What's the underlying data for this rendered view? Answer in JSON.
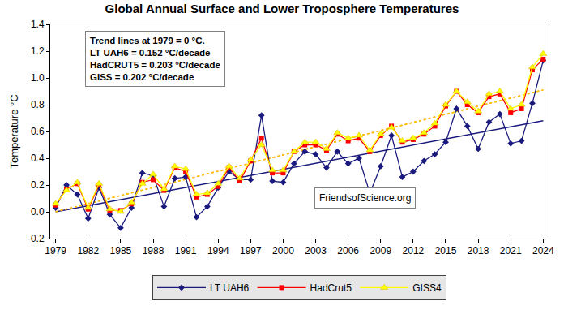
{
  "chart_data": {
    "type": "line",
    "title": "Global Annual Surface and Lower Troposphere Temperatures",
    "y_label": "Temperature °C",
    "annotations": [
      "Trend lines at 1979 = 0 °C.",
      "LT UAH6 = 0.152 °C/decade",
      "HadCRUT5 = 0.203 °C/decade",
      "GISS = 0.202 °C/decade"
    ],
    "watermark": "FriendsofScience.org",
    "x": [
      1979,
      1980,
      1981,
      1982,
      1983,
      1984,
      1985,
      1986,
      1987,
      1988,
      1989,
      1990,
      1991,
      1992,
      1993,
      1994,
      1995,
      1996,
      1997,
      1998,
      1999,
      2000,
      2001,
      2002,
      2003,
      2004,
      2005,
      2006,
      2007,
      2008,
      2009,
      2010,
      2011,
      2012,
      2013,
      2014,
      2015,
      2016,
      2017,
      2018,
      2019,
      2020,
      2021,
      2022,
      2023,
      2024
    ],
    "series": [
      {
        "name": "LT UAH6",
        "color": "#1a1a7e",
        "marker": "diamond",
        "line_style": "solid",
        "values": [
          0.03,
          0.2,
          0.13,
          -0.05,
          0.18,
          -0.02,
          -0.12,
          0.03,
          0.29,
          0.27,
          0.04,
          0.25,
          0.26,
          -0.04,
          0.04,
          0.18,
          0.3,
          0.24,
          0.24,
          0.72,
          0.23,
          0.22,
          0.36,
          0.45,
          0.43,
          0.33,
          0.45,
          0.36,
          0.4,
          0.14,
          0.34,
          0.57,
          0.26,
          0.3,
          0.38,
          0.43,
          0.52,
          0.77,
          0.64,
          0.47,
          0.67,
          0.73,
          0.51,
          0.53,
          0.81,
          1.13
        ],
        "trend": {
          "x": [
            1979,
            2024
          ],
          "values": [
            0,
            0.68
          ],
          "color": "#1a1a7e",
          "line_style": "solid"
        }
      },
      {
        "name": "HadCrut5",
        "color": "#ff0000",
        "marker": "square",
        "line_style": "solid",
        "values": [
          0.05,
          0.17,
          0.21,
          0.02,
          0.2,
          0.01,
          0.01,
          0.06,
          0.22,
          0.24,
          0.16,
          0.33,
          0.3,
          0.11,
          0.13,
          0.19,
          0.33,
          0.23,
          0.38,
          0.55,
          0.29,
          0.29,
          0.45,
          0.5,
          0.5,
          0.46,
          0.58,
          0.53,
          0.55,
          0.45,
          0.57,
          0.64,
          0.52,
          0.54,
          0.58,
          0.64,
          0.79,
          0.9,
          0.8,
          0.74,
          0.86,
          0.88,
          0.74,
          0.77,
          1.06,
          1.14
        ],
        "trend": {
          "x": [
            1979,
            2024
          ],
          "values": [
            0,
            0.91
          ],
          "color": "#ff9900",
          "line_style": "dot"
        }
      },
      {
        "name": "GISS4",
        "color": "#ffff00",
        "marker": "triangle-up",
        "line_style": "solid",
        "values": [
          0.06,
          0.16,
          0.22,
          0.03,
          0.21,
          0.02,
          0.0,
          0.07,
          0.21,
          0.28,
          0.17,
          0.34,
          0.32,
          0.13,
          0.14,
          0.21,
          0.34,
          0.25,
          0.39,
          0.5,
          0.31,
          0.31,
          0.45,
          0.52,
          0.52,
          0.47,
          0.59,
          0.55,
          0.57,
          0.46,
          0.58,
          0.63,
          0.53,
          0.55,
          0.59,
          0.66,
          0.8,
          0.9,
          0.82,
          0.75,
          0.88,
          0.9,
          0.77,
          0.8,
          1.08,
          1.18
        ],
        "trend": {
          "x": [
            1979,
            2024
          ],
          "values": [
            0,
            0.91
          ],
          "color": "#ffc000",
          "line_style": "dot"
        }
      }
    ],
    "xlim": [
      1978.5,
      2024.5
    ],
    "xticks": [
      1979,
      1982,
      1985,
      1988,
      1991,
      1994,
      1997,
      2000,
      2003,
      2006,
      2009,
      2012,
      2015,
      2018,
      2021,
      2024
    ],
    "ylim": [
      -0.2,
      1.4
    ],
    "yticks": [
      -0.2,
      {
        "value": 0,
        "label": "0.0"
      },
      0.2,
      0.4,
      0.6,
      0.8,
      {
        "value": 1,
        "label": "1.0"
      },
      1.2,
      1.4
    ],
    "grid": false,
    "legend": "bottom"
  }
}
